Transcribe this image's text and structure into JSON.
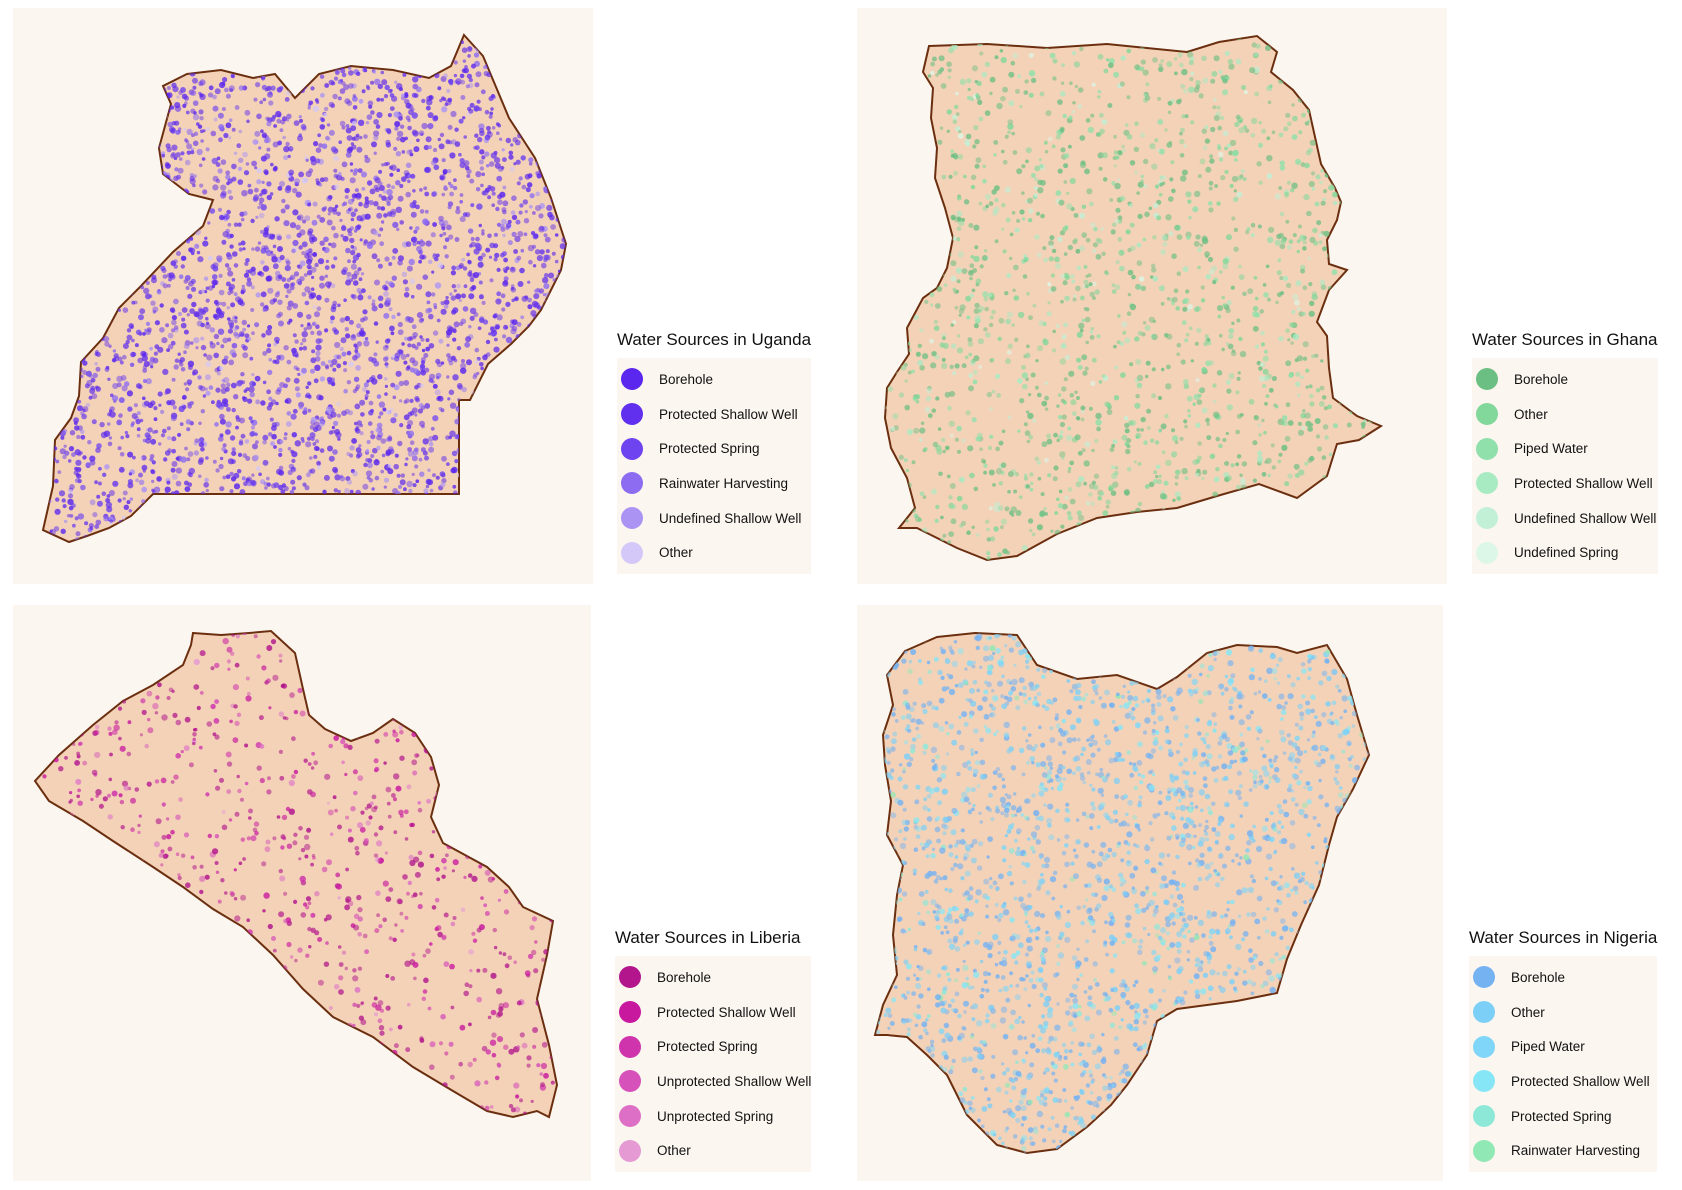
{
  "maps": [
    {
      "id": "uganda",
      "legend_title": "Water Sources in Uganda",
      "land_fill": "#f3d2b8",
      "border_color": "#6b2f10",
      "dot_color": "#5b2be8",
      "legend": [
        {
          "label": "Borehole",
          "color": "#5b26ee"
        },
        {
          "label": "Protected Shallow Well",
          "color": "#6030ee"
        },
        {
          "label": "Protected Spring",
          "color": "#6e44f0"
        },
        {
          "label": "Rainwater Harvesting",
          "color": "#8d6cf2"
        },
        {
          "label": "Undefined Shallow Well",
          "color": "#ab93f4"
        },
        {
          "label": "Other",
          "color": "#d4c8f8"
        }
      ]
    },
    {
      "id": "ghana",
      "legend_title": "Water Sources in Ghana",
      "land_fill": "#f3d2b8",
      "border_color": "#6b2f10",
      "dot_color": "#5cba7c",
      "legend": [
        {
          "label": "Borehole",
          "color": "#6cbf83"
        },
        {
          "label": "Other",
          "color": "#82d79a"
        },
        {
          "label": "Piped Water",
          "color": "#8fe0aa"
        },
        {
          "label": "Protected Shallow Well",
          "color": "#a8eac2"
        },
        {
          "label": "Undefined Shallow Well",
          "color": "#c2f0d6"
        },
        {
          "label": "Undefined Spring",
          "color": "#dcf7e8"
        }
      ]
    },
    {
      "id": "liberia",
      "legend_title": "Water Sources in Liberia",
      "land_fill": "#f3d2b8",
      "border_color": "#6b2f10",
      "dot_color": "#c8189c",
      "legend": [
        {
          "label": "Borehole",
          "color": "#b2158c"
        },
        {
          "label": "Protected Shallow Well",
          "color": "#c8189e"
        },
        {
          "label": "Protected Spring",
          "color": "#cf34ac"
        },
        {
          "label": "Unprotected Shallow Well",
          "color": "#d651b9"
        },
        {
          "label": "Unprotected Spring",
          "color": "#dd70c6"
        },
        {
          "label": "Other",
          "color": "#e59ad4"
        }
      ]
    },
    {
      "id": "nigeria",
      "legend_title": "Water Sources in Nigeria",
      "land_fill": "#f3d2b8",
      "border_color": "#6b2f10",
      "dot_color": "#74b2f2",
      "legend": [
        {
          "label": "Borehole",
          "color": "#74b2f2"
        },
        {
          "label": "Other",
          "color": "#7ccff6"
        },
        {
          "label": "Piped Water",
          "color": "#80d6f8"
        },
        {
          "label": "Protected Shallow Well",
          "color": "#86e6f6"
        },
        {
          "label": "Protected Spring",
          "color": "#8ee8d8"
        },
        {
          "label": "Rainwater Harvesting",
          "color": "#90e8b4"
        }
      ]
    }
  ]
}
